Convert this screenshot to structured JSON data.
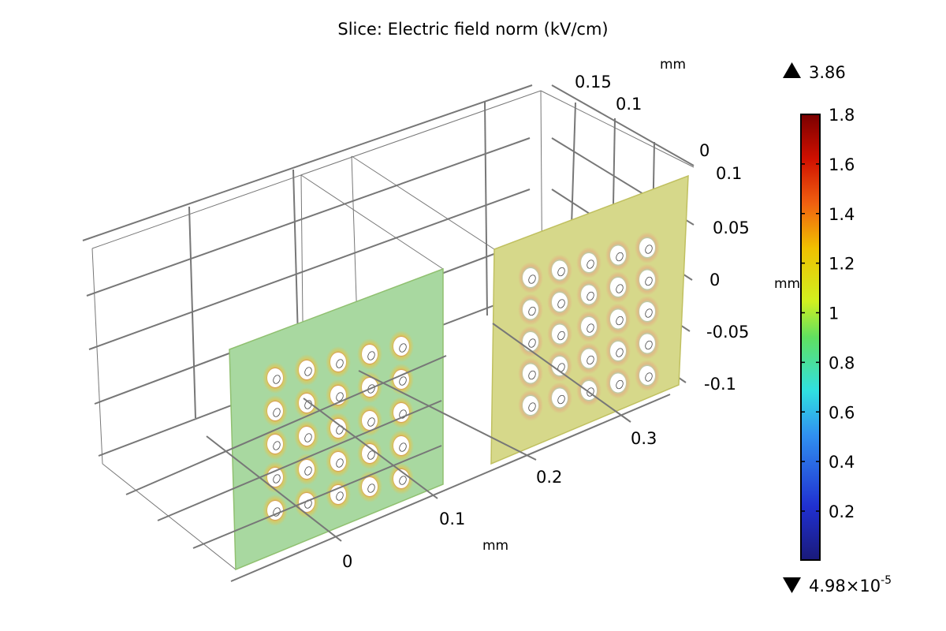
{
  "chart_data": {
    "type": "heatmap",
    "title": "Slice: Electric field norm (kV/cm)",
    "x_axis": {
      "unit": "mm",
      "ticks": [
        "0",
        "0.1",
        "0.2",
        "0.3"
      ]
    },
    "y_axis": {
      "unit": "mm",
      "ticks": [
        "0.15",
        "0.1",
        "0"
      ]
    },
    "z_axis": {
      "unit": "mm",
      "ticks": [
        "0.1",
        "0.05",
        "0",
        "-0.05",
        "-0.1"
      ]
    },
    "colorbar": {
      "colormap": "rainbow",
      "ticks": [
        "1.8",
        "1.6",
        "1.4",
        "1.2",
        "1",
        "0.8",
        "0.6",
        "0.4",
        "0.2"
      ],
      "tick_values": [
        1.8,
        1.6,
        1.4,
        1.2,
        1.0,
        0.8,
        0.6,
        0.4,
        0.2
      ],
      "range": [
        4.98e-05,
        1.8
      ],
      "max_label": "3.86",
      "min_label_base": "4.98×10",
      "min_label_exp": "-5"
    },
    "slices": [
      {
        "name": "slice-1",
        "holes_grid": [
          5,
          5
        ],
        "background_color": "#a8d8a0"
      },
      {
        "name": "slice-2",
        "holes_grid": [
          5,
          5
        ],
        "background_color": "#d6d88a"
      }
    ]
  }
}
